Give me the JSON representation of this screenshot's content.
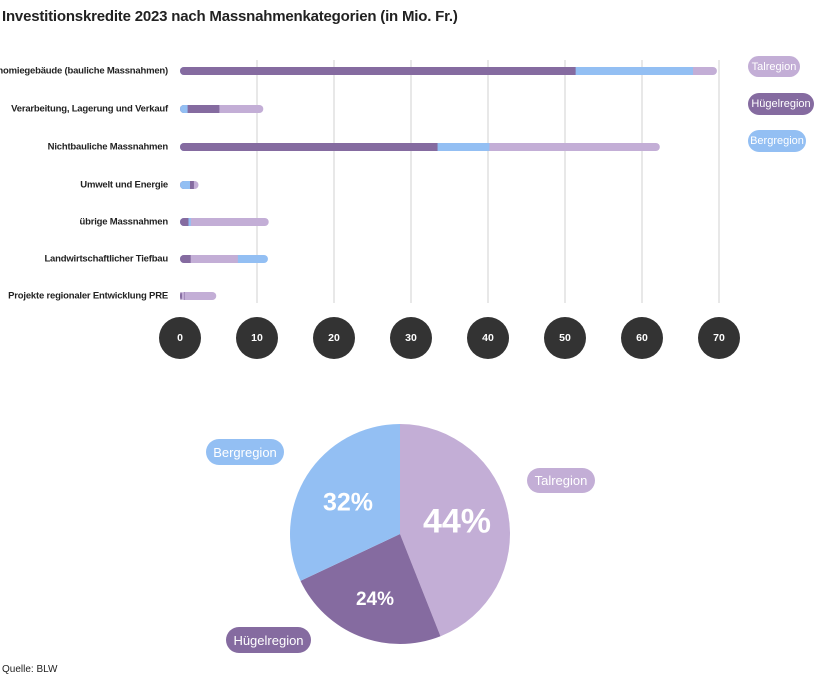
{
  "chart_data": [
    {
      "type": "bar",
      "orientation": "horizontal",
      "stacked": true,
      "title": "Investitionskredite 2023 nach Massnahmenkategorien (in Mio. Fr.)",
      "categories": [
        "Ökonomiegebäude (bauliche Massnahmen)",
        "Verarbeitung, Lagerung und Verkauf",
        "Nichtbauliche Massnahmen",
        "Umwelt und Energie",
        "übrige Massnahmen",
        "Landwirtschaftlicher Tiefbau",
        "Projekte regionaler Entwicklung PRE"
      ],
      "series": [
        {
          "name": "Talregion",
          "color": "#c3aed6",
          "values": [
            3.1,
            5.7,
            22.1,
            0.6,
            10.1,
            6.1,
            4.5
          ]
        },
        {
          "name": "Hügelregion",
          "color": "#856ba0",
          "values": [
            51.3,
            4.1,
            33.4,
            0.5,
            1.1,
            1.4,
            0.2
          ]
        },
        {
          "name": "Bergregion",
          "color": "#93bff3",
          "values": [
            15.2,
            1.0,
            6.7,
            1.3,
            0.3,
            3.9,
            0
          ]
        }
      ],
      "segment_order": [
        [
          "Hügelregion",
          "Bergregion",
          "Talregion"
        ],
        [
          "Bergregion",
          "Hügelregion",
          "Talregion"
        ],
        [
          "Hügelregion",
          "Bergregion",
          "Talregion"
        ],
        [
          "Bergregion",
          "Hügelregion",
          "Talregion"
        ],
        [
          "Hügelregion",
          "Bergregion",
          "Talregion"
        ],
        [
          "Hügelregion",
          "Talregion",
          "Bergregion"
        ],
        [
          "Hügelregion",
          "Talregion",
          "Bergregion"
        ]
      ],
      "xlim": [
        0,
        70
      ],
      "xticks": [
        "0",
        "10",
        "20",
        "30",
        "40",
        "50",
        "60",
        "70"
      ],
      "grid": true,
      "legend": "right"
    },
    {
      "type": "pie",
      "slices": [
        {
          "name": "Talregion",
          "value": 44,
          "label": "44%",
          "color": "#c3aed6"
        },
        {
          "name": "Hügelregion",
          "value": 24,
          "label": "24%",
          "color": "#856ba0"
        },
        {
          "name": "Bergregion",
          "value": 32,
          "label": "32%",
          "color": "#93bff3"
        }
      ]
    }
  ],
  "source": "Quelle: BLW"
}
